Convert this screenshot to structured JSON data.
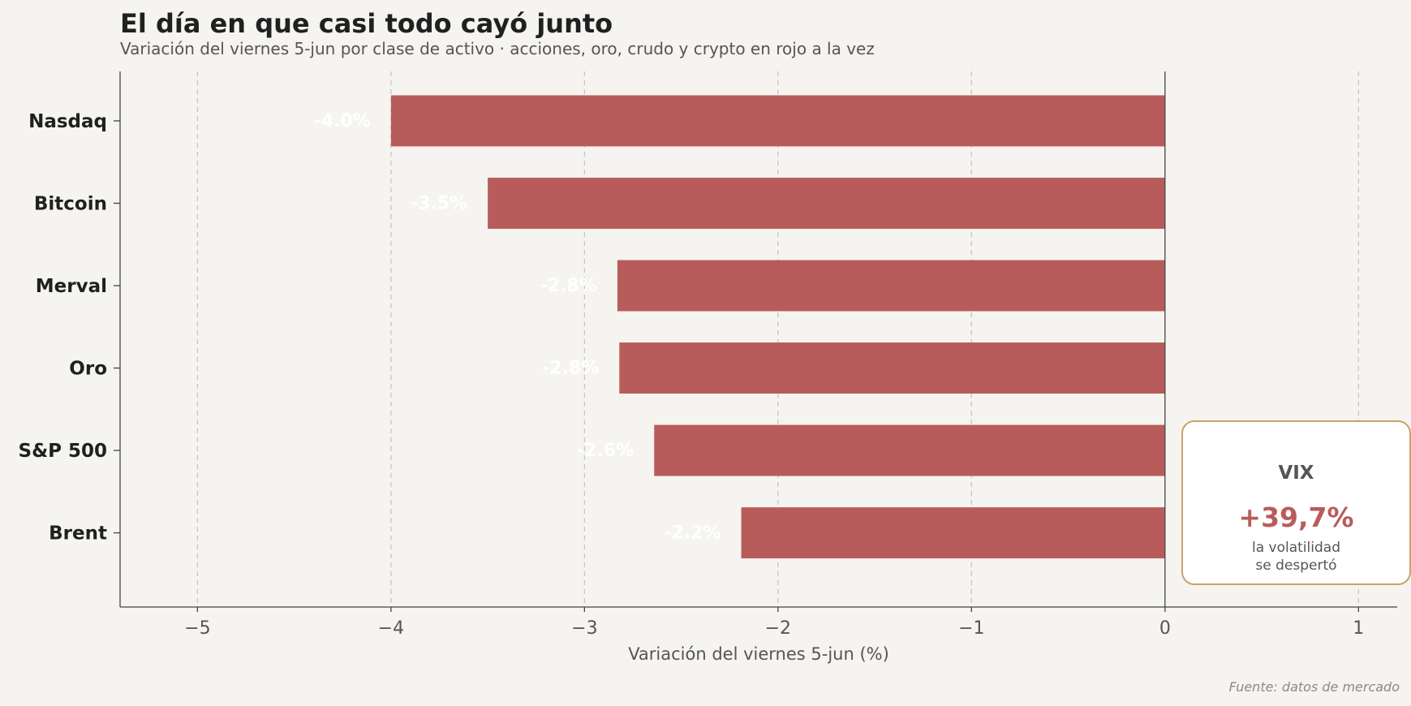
{
  "colors": {
    "bar": "#b85c5b",
    "background": "#f6f4f0",
    "grid": "#c8c5c0",
    "axis": "#444444",
    "vix_border": "#c9a36a"
  },
  "title": "El día en que casi todo cayó junto",
  "subtitle": "Variación del viernes 5-jun por clase de activo · acciones, oro, crudo y crypto en rojo a la vez",
  "source": "Fuente: datos de mercado",
  "vix": {
    "label": "VIX",
    "value": "+39,7%",
    "note_line1": "la volatilidad",
    "note_line2": "se despertó"
  },
  "chart_data": {
    "type": "bar",
    "orientation": "horizontal",
    "categories": [
      "Nasdaq",
      "Bitcoin",
      "Merval",
      "Oro",
      "S&P 500",
      "Brent"
    ],
    "values": [
      -4.0,
      -3.5,
      -2.83,
      -2.82,
      -2.64,
      -2.19
    ],
    "data_labels": [
      "-4.0%",
      "-3.5%",
      "-2.8%",
      "-2.8%",
      "-2.6%",
      "-2.2%"
    ],
    "xlabel": "Variación del viernes 5-jun (%)",
    "ylabel": "",
    "xlim": [
      -5.4,
      1.2
    ],
    "xticks": [
      -5,
      -4,
      -3,
      -2,
      -1,
      0,
      1
    ],
    "xtick_labels": [
      "−5",
      "−4",
      "−3",
      "−2",
      "−1",
      "0",
      "1"
    ],
    "grid": "vertical dashed"
  }
}
